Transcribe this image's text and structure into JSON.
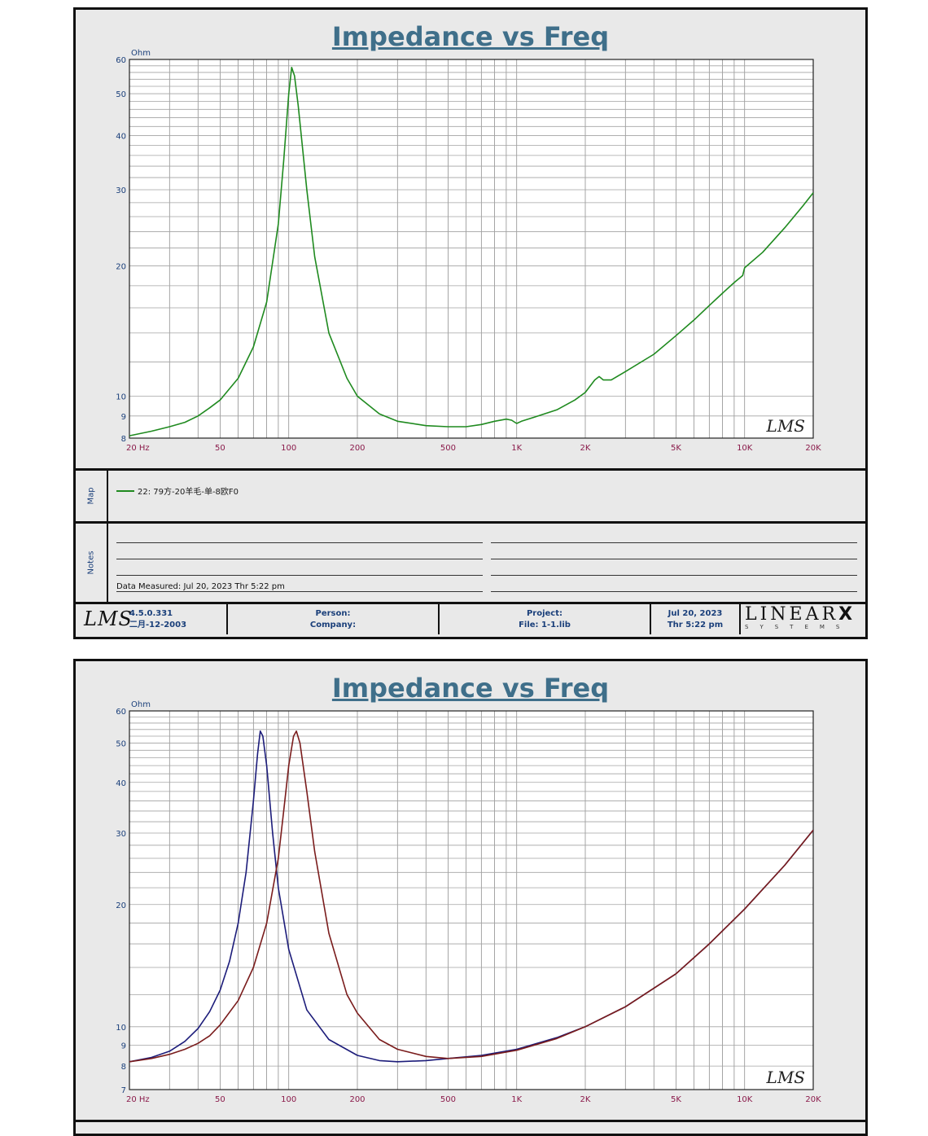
{
  "panels": [
    {
      "title": "Impedance vs Freq",
      "unit_label": "Ohm",
      "lms_watermark": "LMS",
      "map": {
        "side_label": "Map",
        "legend": [
          {
            "text": "22: 79方-20羊毛-单-8欧F0",
            "color": "#1f8a1f"
          }
        ]
      },
      "notes": {
        "side_label": "Notes",
        "data_measured": "Data Measured: Jul 20, 2023  Thr  5:22 pm"
      },
      "footer": {
        "logo": "LMS",
        "version": "4.5.0.331",
        "version_date": "二月-12-2003",
        "person": "Person:",
        "company": "Company:",
        "project": "Project:",
        "file": "File: 1-1.lib",
        "date": "Jul 20, 2023",
        "time": "Thr  5:22 pm",
        "brand": "LINEAR",
        "brand_x": "X",
        "brand_sub": "SYSTEMS"
      }
    },
    {
      "title": "Impedance vs Freq",
      "unit_label": "Ohm",
      "lms_watermark": "LMS"
    }
  ],
  "chart_data": [
    {
      "type": "line",
      "title": "Impedance vs Freq",
      "ylabel": "Ohm",
      "xscale": "log",
      "yscale": "log",
      "xlim": [
        20,
        20000
      ],
      "ylim": [
        8,
        60
      ],
      "x_ticks": [
        {
          "v": 20,
          "label": "20  Hz"
        },
        {
          "v": 50,
          "label": "50"
        },
        {
          "v": 100,
          "label": "100"
        },
        {
          "v": 200,
          "label": "200"
        },
        {
          "v": 500,
          "label": "500"
        },
        {
          "v": 1000,
          "label": "1K"
        },
        {
          "v": 2000,
          "label": "2K"
        },
        {
          "v": 5000,
          "label": "5K"
        },
        {
          "v": 10000,
          "label": "10K"
        },
        {
          "v": 20000,
          "label": "20K"
        }
      ],
      "y_ticks": [
        {
          "v": 8,
          "label": "8"
        },
        {
          "v": 9,
          "label": "9"
        },
        {
          "v": 10,
          "label": "10"
        },
        {
          "v": 20,
          "label": "20"
        },
        {
          "v": 30,
          "label": "30"
        },
        {
          "v": 40,
          "label": "40"
        },
        {
          "v": 50,
          "label": "50"
        },
        {
          "v": 60,
          "label": "60"
        }
      ],
      "series": [
        {
          "name": "22: 79方-20羊毛-单-8欧F0",
          "color": "#1f8a1f",
          "points": [
            [
              20,
              8.1
            ],
            [
              25,
              8.3
            ],
            [
              30,
              8.5
            ],
            [
              35,
              8.7
            ],
            [
              40,
              9.0
            ],
            [
              45,
              9.4
            ],
            [
              50,
              9.8
            ],
            [
              60,
              11.0
            ],
            [
              70,
              13.0
            ],
            [
              80,
              16.5
            ],
            [
              90,
              25.0
            ],
            [
              95,
              35.0
            ],
            [
              100,
              50.0
            ],
            [
              103,
              57.5
            ],
            [
              106,
              55.0
            ],
            [
              110,
              47.0
            ],
            [
              120,
              30.0
            ],
            [
              130,
              21.0
            ],
            [
              150,
              14.0
            ],
            [
              180,
              11.0
            ],
            [
              200,
              10.0
            ],
            [
              250,
              9.1
            ],
            [
              300,
              8.75
            ],
            [
              400,
              8.55
            ],
            [
              500,
              8.5
            ],
            [
              600,
              8.5
            ],
            [
              700,
              8.6
            ],
            [
              800,
              8.75
            ],
            [
              900,
              8.85
            ],
            [
              950,
              8.8
            ],
            [
              1000,
              8.65
            ],
            [
              1050,
              8.75
            ],
            [
              1200,
              8.95
            ],
            [
              1500,
              9.3
            ],
            [
              1800,
              9.8
            ],
            [
              2000,
              10.2
            ],
            [
              2200,
              10.9
            ],
            [
              2300,
              11.1
            ],
            [
              2400,
              10.9
            ],
            [
              2600,
              10.9
            ],
            [
              3000,
              11.4
            ],
            [
              4000,
              12.5
            ],
            [
              5000,
              13.8
            ],
            [
              6000,
              15.0
            ],
            [
              7000,
              16.2
            ],
            [
              8000,
              17.3
            ],
            [
              9000,
              18.3
            ],
            [
              9800,
              19.0
            ],
            [
              10000,
              19.8
            ],
            [
              12000,
              21.5
            ],
            [
              15000,
              24.5
            ],
            [
              18000,
              27.5
            ],
            [
              20000,
              29.5
            ]
          ]
        }
      ]
    },
    {
      "type": "line",
      "title": "Impedance vs Freq",
      "ylabel": "Ohm",
      "xscale": "log",
      "yscale": "log",
      "xlim": [
        20,
        20000
      ],
      "ylim": [
        7,
        60
      ],
      "x_ticks": [
        {
          "v": 20,
          "label": "20  Hz"
        },
        {
          "v": 50,
          "label": "50"
        },
        {
          "v": 100,
          "label": "100"
        },
        {
          "v": 200,
          "label": "200"
        },
        {
          "v": 500,
          "label": "500"
        },
        {
          "v": 1000,
          "label": "1K"
        },
        {
          "v": 2000,
          "label": "2K"
        },
        {
          "v": 5000,
          "label": "5K"
        },
        {
          "v": 10000,
          "label": "10K"
        },
        {
          "v": 20000,
          "label": "20K"
        }
      ],
      "y_ticks": [
        {
          "v": 7,
          "label": "7"
        },
        {
          "v": 8,
          "label": "8"
        },
        {
          "v": 9,
          "label": "9"
        },
        {
          "v": 10,
          "label": "10"
        },
        {
          "v": 20,
          "label": "20"
        },
        {
          "v": 30,
          "label": "30"
        },
        {
          "v": 40,
          "label": "40"
        },
        {
          "v": 50,
          "label": "50"
        },
        {
          "v": 60,
          "label": "60"
        }
      ],
      "series": [
        {
          "color": "#1c1c7a",
          "points": [
            [
              20,
              8.2
            ],
            [
              25,
              8.4
            ],
            [
              30,
              8.7
            ],
            [
              35,
              9.2
            ],
            [
              40,
              9.9
            ],
            [
              45,
              10.9
            ],
            [
              50,
              12.3
            ],
            [
              55,
              14.5
            ],
            [
              60,
              18.0
            ],
            [
              65,
              24.0
            ],
            [
              70,
              36.0
            ],
            [
              73,
              47.0
            ],
            [
              75,
              53.5
            ],
            [
              77,
              52.0
            ],
            [
              80,
              44.0
            ],
            [
              85,
              30.0
            ],
            [
              90,
              22.0
            ],
            [
              100,
              15.5
            ],
            [
              120,
              11.0
            ],
            [
              150,
              9.3
            ],
            [
              200,
              8.5
            ],
            [
              250,
              8.25
            ],
            [
              300,
              8.2
            ],
            [
              400,
              8.25
            ],
            [
              500,
              8.35
            ],
            [
              700,
              8.5
            ],
            [
              1000,
              8.8
            ],
            [
              1500,
              9.4
            ],
            [
              2000,
              10.0
            ],
            [
              3000,
              11.2
            ],
            [
              5000,
              13.5
            ],
            [
              7000,
              16.0
            ],
            [
              10000,
              19.5
            ],
            [
              15000,
              25.0
            ],
            [
              20000,
              30.5
            ]
          ]
        },
        {
          "color": "#7a1c1c",
          "points": [
            [
              20,
              8.2
            ],
            [
              25,
              8.35
            ],
            [
              30,
              8.55
            ],
            [
              35,
              8.8
            ],
            [
              40,
              9.1
            ],
            [
              45,
              9.5
            ],
            [
              50,
              10.1
            ],
            [
              60,
              11.6
            ],
            [
              70,
              14.0
            ],
            [
              80,
              18.0
            ],
            [
              90,
              26.0
            ],
            [
              95,
              34.0
            ],
            [
              100,
              44.0
            ],
            [
              105,
              52.0
            ],
            [
              108,
              53.5
            ],
            [
              112,
              50.0
            ],
            [
              120,
              38.0
            ],
            [
              130,
              27.0
            ],
            [
              150,
              17.0
            ],
            [
              180,
              12.0
            ],
            [
              200,
              10.8
            ],
            [
              250,
              9.3
            ],
            [
              300,
              8.8
            ],
            [
              400,
              8.45
            ],
            [
              500,
              8.35
            ],
            [
              700,
              8.45
            ],
            [
              1000,
              8.75
            ],
            [
              1500,
              9.35
            ],
            [
              2000,
              10.0
            ],
            [
              3000,
              11.2
            ],
            [
              5000,
              13.5
            ],
            [
              7000,
              16.0
            ],
            [
              10000,
              19.5
            ],
            [
              15000,
              25.0
            ],
            [
              20000,
              30.5
            ]
          ]
        }
      ]
    }
  ]
}
